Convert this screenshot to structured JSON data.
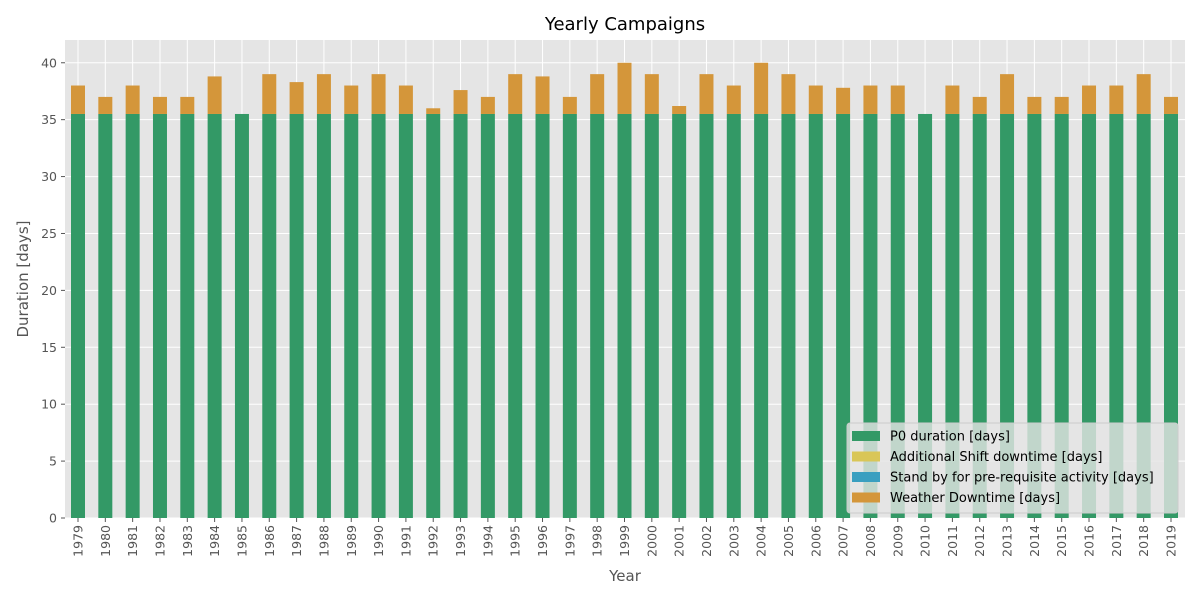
{
  "chart_data": {
    "type": "bar",
    "stacked": true,
    "title": "Yearly Campaigns",
    "xlabel": "Year",
    "ylabel": "Duration [days]",
    "ylim": [
      0,
      42
    ],
    "yticks": [
      0,
      5,
      10,
      15,
      20,
      25,
      30,
      35,
      40
    ],
    "grid": true,
    "legend_position": "lower-right",
    "categories": [
      "1979",
      "1980",
      "1981",
      "1982",
      "1983",
      "1984",
      "1985",
      "1986",
      "1987",
      "1988",
      "1989",
      "1990",
      "1991",
      "1992",
      "1993",
      "1994",
      "1995",
      "1996",
      "1997",
      "1998",
      "1999",
      "2000",
      "2001",
      "2002",
      "2003",
      "2004",
      "2005",
      "2006",
      "2007",
      "2008",
      "2009",
      "2010",
      "2011",
      "2012",
      "2013",
      "2014",
      "2015",
      "2016",
      "2017",
      "2018",
      "2019"
    ],
    "series": [
      {
        "name": "P0 duration [days]",
        "color": "#339966",
        "values": [
          35.5,
          35.5,
          35.5,
          35.5,
          35.5,
          35.5,
          35.5,
          35.5,
          35.5,
          35.5,
          35.5,
          35.5,
          35.5,
          35.5,
          35.5,
          35.5,
          35.5,
          35.5,
          35.5,
          35.5,
          35.5,
          35.5,
          35.5,
          35.5,
          35.5,
          35.5,
          35.5,
          35.5,
          35.5,
          35.5,
          35.5,
          35.5,
          35.5,
          35.5,
          35.5,
          35.5,
          35.5,
          35.5,
          35.5,
          35.5,
          35.5
        ]
      },
      {
        "name": "Additional Shift downtime [days]",
        "color": "#d9c657",
        "values": [
          0,
          0,
          0,
          0,
          0,
          0,
          0,
          0,
          0,
          0,
          0,
          0,
          0,
          0,
          0,
          0,
          0,
          0,
          0,
          0,
          0,
          0,
          0,
          0,
          0,
          0,
          0,
          0,
          0,
          0,
          0,
          0,
          0,
          0,
          0,
          0,
          0,
          0,
          0,
          0,
          0
        ]
      },
      {
        "name": "Stand by for pre-requisite activity [days]",
        "color": "#3a9fc0",
        "values": [
          0,
          0,
          0,
          0,
          0,
          0,
          0,
          0,
          0,
          0,
          0,
          0,
          0,
          0,
          0,
          0,
          0,
          0,
          0,
          0,
          0,
          0,
          0,
          0,
          0,
          0,
          0,
          0,
          0,
          0,
          0,
          0,
          0,
          0,
          0,
          0,
          0,
          0,
          0,
          0,
          0
        ]
      },
      {
        "name": "Weather Downtime [days]",
        "color": "#d4963a",
        "values": [
          2.5,
          1.5,
          2.5,
          1.5,
          1.5,
          3.3,
          0,
          3.5,
          2.8,
          3.5,
          2.5,
          3.5,
          2.5,
          0.5,
          2.1,
          1.5,
          3.5,
          3.3,
          1.5,
          3.5,
          4.5,
          3.5,
          0.7,
          3.5,
          2.5,
          4.5,
          3.5,
          2.5,
          2.3,
          2.5,
          2.5,
          0,
          2.5,
          1.5,
          3.5,
          1.5,
          1.5,
          2.5,
          2.5,
          3.5,
          1.5
        ]
      }
    ]
  }
}
